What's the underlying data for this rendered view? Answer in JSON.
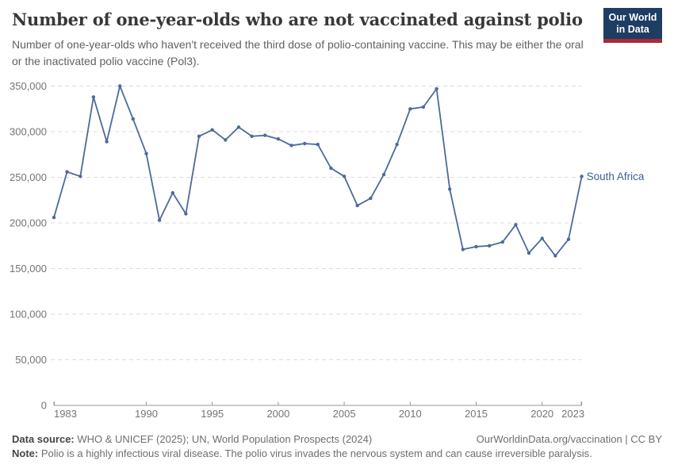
{
  "header": {
    "title": "Number of one-year-olds who are not vaccinated against polio",
    "subtitle": "Number of one-year-olds who haven't received the third dose of polio-containing vaccine. This may be either the oral or the inactivated polio vaccine (Pol3).",
    "logo": {
      "line1": "Our World",
      "line2": "in Data",
      "bg_color": "#1d3d63",
      "bar_color": "#a82b35"
    }
  },
  "chart_data": {
    "type": "line",
    "title": "Number of one-year-olds who are not vaccinated against polio",
    "xlabel": "",
    "ylabel": "",
    "xlim": [
      1983,
      2023
    ],
    "ylim": [
      0,
      350000
    ],
    "x_ticks": [
      1983,
      1990,
      1995,
      2000,
      2005,
      2010,
      2015,
      2020,
      2023
    ],
    "y_ticks": [
      0,
      50000,
      100000,
      150000,
      200000,
      250000,
      300000,
      350000
    ],
    "grid": "horizontal-dashed",
    "legend_position": "line-end-label",
    "line_color": "#4C6A9C",
    "series": [
      {
        "name": "South Africa",
        "color": "#4C6A9C",
        "x": [
          1983,
          1984,
          1985,
          1986,
          1987,
          1988,
          1989,
          1990,
          1991,
          1992,
          1993,
          1994,
          1995,
          1996,
          1997,
          1998,
          1999,
          2000,
          2001,
          2002,
          2003,
          2004,
          2005,
          2006,
          2007,
          2008,
          2009,
          2010,
          2011,
          2012,
          2013,
          2014,
          2015,
          2016,
          2017,
          2018,
          2019,
          2020,
          2021,
          2022,
          2023
        ],
        "values": [
          206000,
          256000,
          251000,
          338000,
          289000,
          350000,
          314000,
          276000,
          203000,
          233000,
          210000,
          295000,
          302000,
          291000,
          305000,
          295000,
          296000,
          292000,
          285000,
          287000,
          286000,
          260000,
          251000,
          219000,
          227000,
          253000,
          286000,
          325000,
          327000,
          347000,
          237000,
          171000,
          174000,
          175000,
          179000,
          198000,
          167000,
          183000,
          164000,
          182000,
          251000
        ]
      }
    ]
  },
  "footer": {
    "data_source_label": "Data source:",
    "data_source_text": " WHO & UNICEF (2025); UN, World Population Prospects (2024)",
    "link": "OurWorldinData.org/vaccination | CC BY",
    "note_label": "Note:",
    "note_text": " Polio is a highly infectious viral disease. The polio virus invades the nervous system and can cause irreversible paralysis."
  }
}
